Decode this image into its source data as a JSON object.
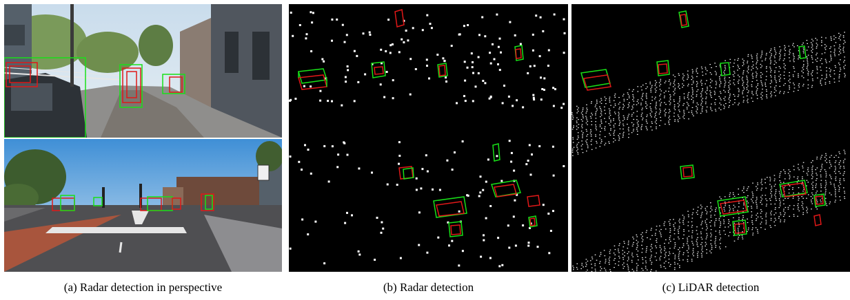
{
  "figure": {
    "captions": {
      "a": "(a) Radar detection in perspective",
      "b": "(b) Radar detection",
      "c": "(c) LiDAR detection"
    }
  },
  "legend_colors": {
    "ground_truth_boxes": "#18e018",
    "predicted_boxes": "#e01818",
    "point_cloud": "#ffffff"
  }
}
